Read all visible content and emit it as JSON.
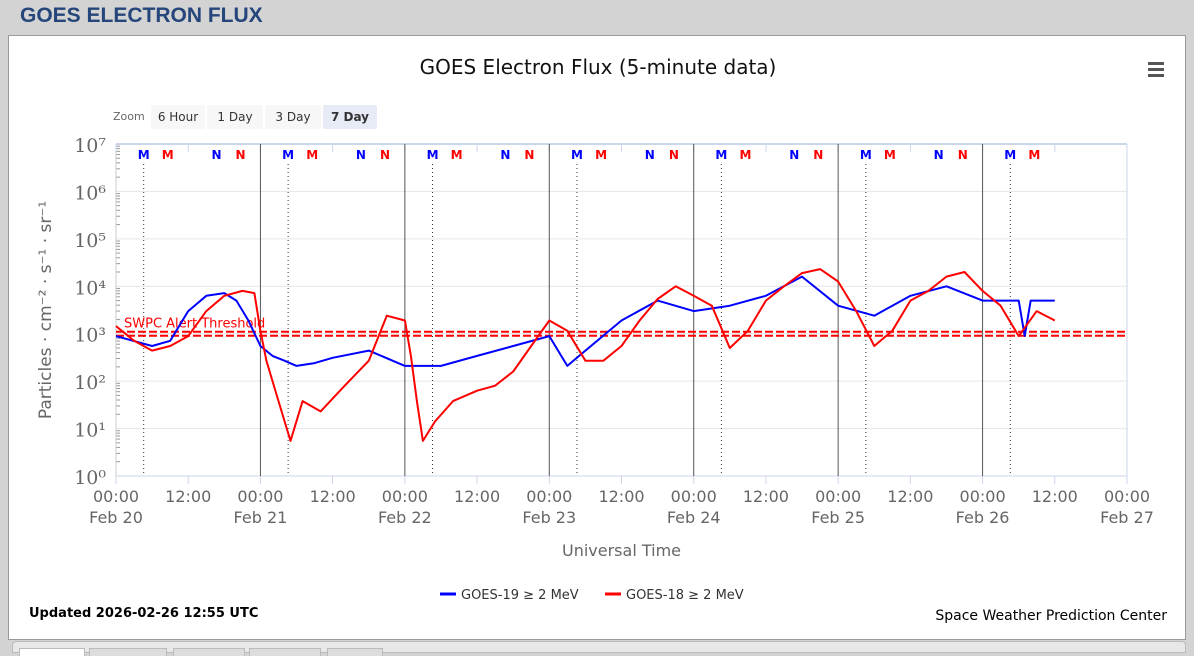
{
  "page_title": "GOES ELECTRON FLUX",
  "updated": "Updated 2026-02-26 12:55 UTC",
  "credit": "Space Weather Prediction Center",
  "zoom": {
    "label": "Zoom",
    "buttons": [
      "6 Hour",
      "1 Day",
      "3 Day",
      "7 Day"
    ],
    "active": "7 Day"
  },
  "menu_icon": "hamburger-menu-icon",
  "chart_data": {
    "type": "line",
    "title": "GOES Electron Flux (5-minute data)",
    "xlabel": "Universal Time",
    "ylabel": "Particles · cm⁻² · s⁻¹ · sr⁻¹",
    "yscale": "log",
    "ylim": [
      1,
      10000000
    ],
    "ytick_labels": [
      "10⁰",
      "10¹",
      "10²",
      "10³",
      "10⁴",
      "10⁵",
      "10⁶",
      "10⁷"
    ],
    "xlim_hours": [
      0,
      168
    ],
    "xtick_labels": [
      [
        "00:00",
        "Feb 20"
      ],
      [
        "12:00",
        ""
      ],
      [
        "00:00",
        "Feb 21"
      ],
      [
        "12:00",
        ""
      ],
      [
        "00:00",
        "Feb 22"
      ],
      [
        "12:00",
        ""
      ],
      [
        "00:00",
        "Feb 23"
      ],
      [
        "12:00",
        ""
      ],
      [
        "00:00",
        "Feb 24"
      ],
      [
        "12:00",
        ""
      ],
      [
        "00:00",
        "Feb 25"
      ],
      [
        "12:00",
        ""
      ],
      [
        "00:00",
        "Feb 26"
      ],
      [
        "12:00",
        ""
      ],
      [
        "00:00",
        "Feb 27"
      ]
    ],
    "threshold": {
      "label": "SWPC Alert Threshold",
      "value": 1000,
      "color": "#ff0000"
    },
    "markers": {
      "blue_M_hour": 4.6,
      "red_M_hour": 8.6,
      "blue_N_hour": 16.7,
      "red_N_hour": 20.7,
      "M": "M",
      "N": "N"
    },
    "legend_position": "bottom-center",
    "series": [
      {
        "name": "GOES-19 ≥ 2 MeV",
        "color": "#0000ff",
        "hours": [
          0,
          6,
          9,
          12,
          15,
          18,
          20,
          22,
          24,
          26,
          28,
          30,
          33,
          36,
          42,
          48,
          54,
          60,
          66,
          72,
          75,
          78,
          84,
          90,
          96,
          102,
          108,
          114,
          120,
          126,
          132,
          138,
          144,
          150,
          151,
          152,
          156
        ],
        "values": [
          890,
          550,
          710,
          3000,
          6300,
          7200,
          5000,
          1900,
          550,
          340,
          270,
          210,
          240,
          310,
          440,
          210,
          210,
          340,
          550,
          890,
          210,
          440,
          1900,
          5000,
          3000,
          3900,
          6300,
          16000,
          3900,
          2400,
          6300,
          10000,
          5000,
          5000,
          900,
          5000,
          5000
        ]
      },
      {
        "name": "GOES-18 ≥ 2 MeV",
        "color": "#ff0000",
        "hours": [
          0,
          3,
          6,
          9,
          12,
          15,
          18,
          21,
          23,
          24,
          25,
          27,
          29,
          31,
          34,
          38,
          42,
          45,
          48,
          49,
          50,
          51,
          53,
          56,
          60,
          63,
          66,
          69,
          72,
          75,
          78,
          81,
          84,
          87,
          90,
          93,
          96,
          99,
          102,
          105,
          108,
          111,
          114,
          117,
          120,
          123,
          126,
          129,
          132,
          135,
          138,
          141,
          144,
          147,
          150,
          153,
          156
        ],
        "values": [
          1450,
          710,
          440,
          550,
          890,
          3000,
          6300,
          8000,
          7200,
          1150,
          270,
          38,
          5.5,
          38,
          23,
          80,
          270,
          2400,
          1900,
          340,
          38,
          5.5,
          14,
          38,
          63,
          80,
          160,
          550,
          1900,
          1150,
          270,
          270,
          550,
          1900,
          5400,
          10000,
          6300,
          3900,
          500,
          1150,
          5000,
          10000,
          19000,
          23000,
          12600,
          3000,
          550,
          1150,
          5000,
          8000,
          16000,
          20000,
          8000,
          3900,
          890,
          3000,
          1900
        ]
      }
    ]
  }
}
